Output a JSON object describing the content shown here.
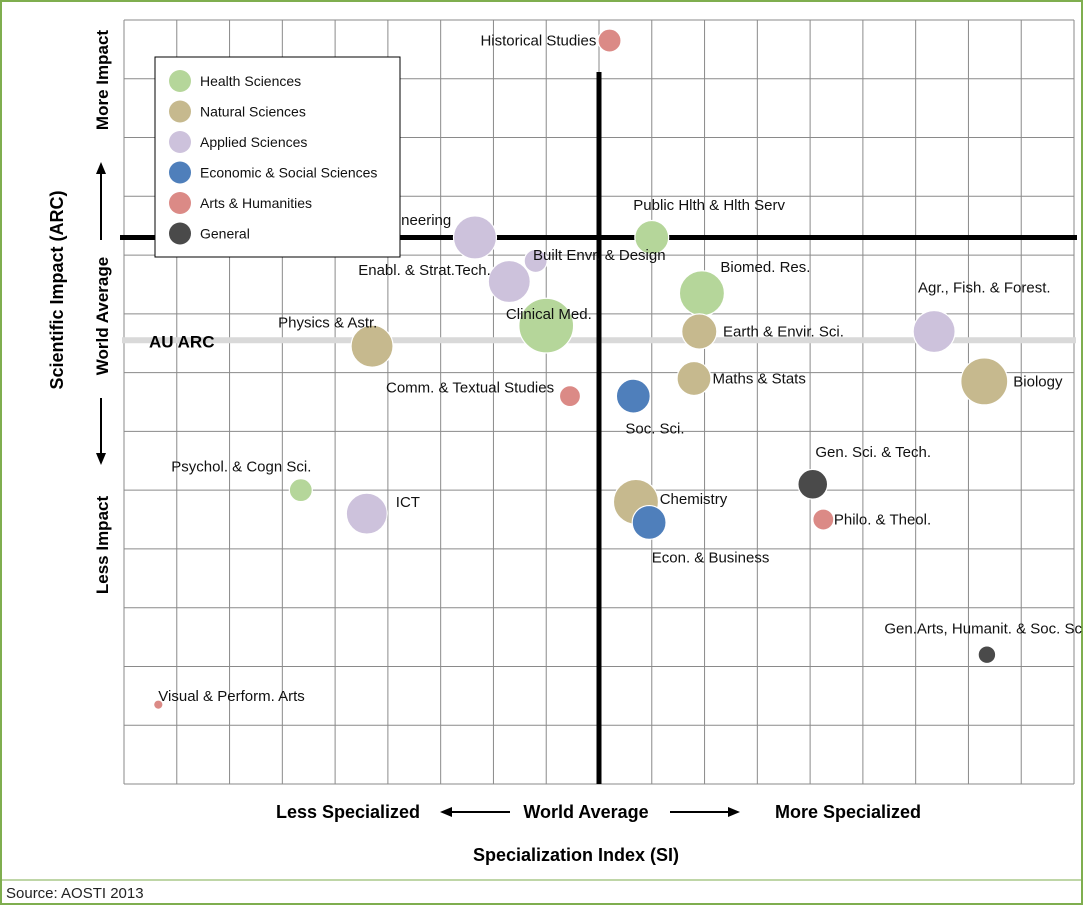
{
  "colors": {
    "border": "#7fae4f",
    "grid": "#8a8a8a",
    "axis": "#000000",
    "au_line": "#d9d9d9"
  },
  "source_text": "Source: AOSTI 2013",
  "x_axis": {
    "left_text": "Less Specialized",
    "center_text": "World Average",
    "right_text": "More Specialized",
    "title": "Specialization Index (SI)"
  },
  "y_axis": {
    "more_text": "More Impact",
    "center_text": "World Average",
    "less_text": "Less Impact",
    "title": "Scientific Impact  (ARC)"
  },
  "au_arc_label": "AU ARC",
  "legend": [
    {
      "key": "health",
      "label": "Health Sciences",
      "color": "#b5d69a"
    },
    {
      "key": "natural",
      "label": "Natural Sciences",
      "color": "#c6b98e"
    },
    {
      "key": "applied",
      "label": "Applied Sciences",
      "color": "#cdc2dc"
    },
    {
      "key": "econ",
      "label": "Economic & Social Sciences",
      "color": "#4f7fbb"
    },
    {
      "key": "arts",
      "label": "Arts & Humanities",
      "color": "#db8a86"
    },
    {
      "key": "general",
      "label": "General",
      "color": "#4a4a4a"
    }
  ],
  "chart_data": {
    "type": "scatter",
    "subtype": "bubble",
    "xlabel": "Specialization Index (SI)",
    "ylabel": "Scientific Impact  (ARC)",
    "xlim": [
      0,
      18
    ],
    "ylim": [
      0,
      13
    ],
    "world_average_x": 9.0,
    "world_average_y": 9.3,
    "au_arc_y": 7.55,
    "grid": true,
    "legend_position": "top-left",
    "points": [
      {
        "label": "Historical Studies",
        "category": "arts",
        "x": 9.2,
        "y": 12.65,
        "size": 1.2,
        "label_anchor": "end",
        "lx": -0.25,
        "ly": 0.0
      },
      {
        "label": "Public Hlth & Hlth Serv",
        "category": "health",
        "x": 10.0,
        "y": 9.3,
        "size": 2.6,
        "label_anchor": "start",
        "lx": -0.35,
        "ly": 0.55
      },
      {
        "label": "Engineering",
        "category": "applied",
        "x": 6.65,
        "y": 9.3,
        "size": 4.2,
        "label_anchor": "end",
        "lx": -0.45,
        "ly": 0.3
      },
      {
        "label": "Built Envr. & Design",
        "category": "applied",
        "x": 7.8,
        "y": 8.9,
        "size": 1.2,
        "label_anchor": "start",
        "lx": -0.05,
        "ly": 0.1
      },
      {
        "label": "Enabl. & Strat.Tech.",
        "category": "applied",
        "x": 7.3,
        "y": 8.55,
        "size": 4.0,
        "label_anchor": "end",
        "lx": -0.35,
        "ly": 0.2
      },
      {
        "label": "Biomed. Res.",
        "category": "health",
        "x": 10.95,
        "y": 8.35,
        "size": 4.6,
        "label_anchor": "start",
        "lx": 0.35,
        "ly": 0.45
      },
      {
        "label": "Clinical Med.",
        "category": "health",
        "x": 8.0,
        "y": 7.8,
        "size": 6.8,
        "label_anchor": "middle",
        "lx": 0.05,
        "ly": 0.2
      },
      {
        "label": "Earth & Envir. Sci.",
        "category": "natural",
        "x": 10.9,
        "y": 7.7,
        "size": 2.8,
        "label_anchor": "start",
        "lx": 0.45,
        "ly": 0.0
      },
      {
        "label": "Agr., Fish. & Forest.",
        "category": "applied",
        "x": 15.35,
        "y": 7.7,
        "size": 4.0,
        "label_anchor": "middle",
        "lx": 0.95,
        "ly": 0.75
      },
      {
        "label": "Physics & Astr.",
        "category": "natural",
        "x": 4.7,
        "y": 7.45,
        "size": 4.0,
        "label_anchor": "end",
        "lx": 0.1,
        "ly": 0.4
      },
      {
        "label": "Maths & Stats",
        "category": "natural",
        "x": 10.8,
        "y": 6.9,
        "size": 2.6,
        "label_anchor": "start",
        "lx": 0.35,
        "ly": 0.0
      },
      {
        "label": "Biology",
        "category": "natural",
        "x": 16.3,
        "y": 6.85,
        "size": 5.0,
        "label_anchor": "start",
        "lx": 0.55,
        "ly": 0.0
      },
      {
        "label": "Comm. & Textual Studies",
        "category": "arts",
        "x": 8.45,
        "y": 6.6,
        "size": 1.0,
        "label_anchor": "end",
        "lx": -0.3,
        "ly": 0.15
      },
      {
        "label": "Soc. Sci.",
        "category": "econ",
        "x": 9.65,
        "y": 6.6,
        "size": 2.6,
        "label_anchor": "start",
        "lx": -0.15,
        "ly": -0.55
      },
      {
        "label": "Gen. Sci. & Tech.",
        "category": "general",
        "x": 13.05,
        "y": 5.1,
        "size": 2.0,
        "label_anchor": "start",
        "lx": 0.05,
        "ly": 0.55
      },
      {
        "label": "Psychol. & Cogn Sci.",
        "category": "health",
        "x": 3.35,
        "y": 5.0,
        "size": 1.2,
        "label_anchor": "end",
        "lx": 0.2,
        "ly": 0.4
      },
      {
        "label": "Chemistry",
        "category": "natural",
        "x": 9.7,
        "y": 4.8,
        "size": 4.6,
        "label_anchor": "start",
        "lx": 0.45,
        "ly": 0.05
      },
      {
        "label": "ICT",
        "category": "applied",
        "x": 4.6,
        "y": 4.6,
        "size": 3.8,
        "label_anchor": "start",
        "lx": 0.55,
        "ly": 0.2
      },
      {
        "label": "Philo. & Theol.",
        "category": "arts",
        "x": 13.25,
        "y": 4.5,
        "size": 1.0,
        "label_anchor": "start",
        "lx": 0.2,
        "ly": 0.0
      },
      {
        "label": "Econ. & Business",
        "category": "econ",
        "x": 9.95,
        "y": 4.45,
        "size": 2.6,
        "label_anchor": "start",
        "lx": 0.05,
        "ly": -0.6
      },
      {
        "label": "Gen.Arts, Humanit. & Soc. Sci.",
        "category": "general",
        "x": 16.35,
        "y": 2.2,
        "size": 0.7,
        "label_anchor": "middle",
        "lx": 0.0,
        "ly": 0.45
      },
      {
        "label": "Visual & Perform. Arts",
        "category": "arts",
        "x": 0.65,
        "y": 1.35,
        "size": 0.2,
        "label_anchor": "start",
        "lx": 0.0,
        "ly": 0.15
      }
    ]
  }
}
